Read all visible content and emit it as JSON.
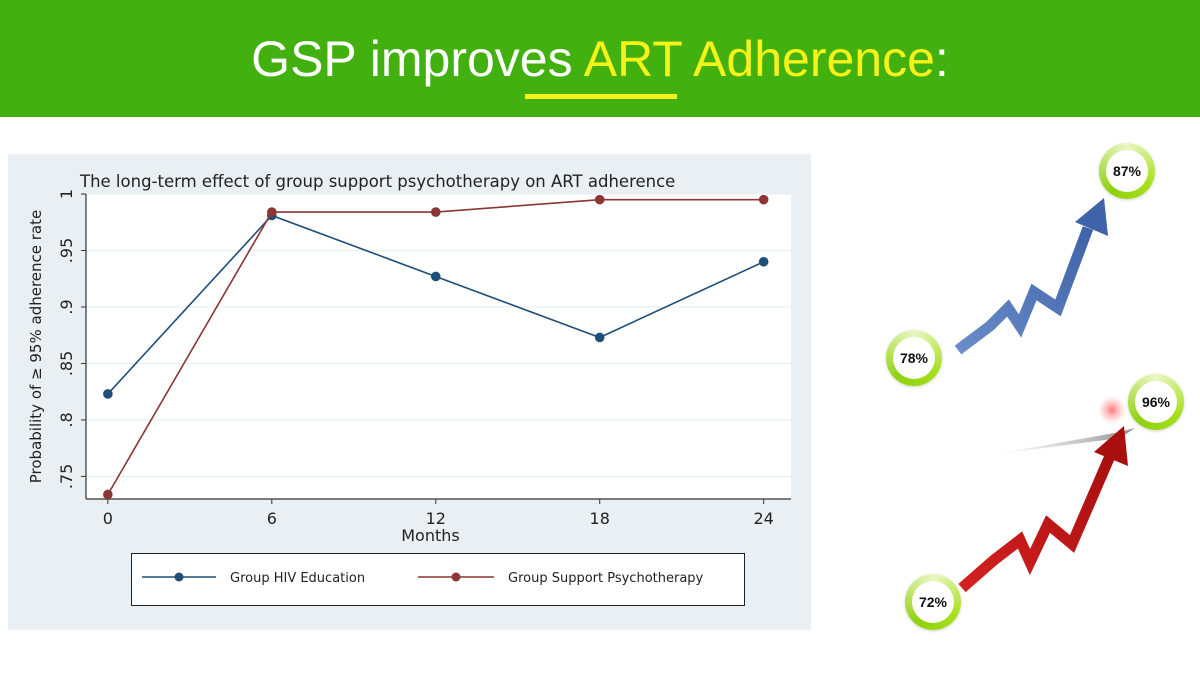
{
  "slide": {
    "title_parts": [
      "GSP improves ",
      "ART",
      " Adherence",
      ":"
    ],
    "colors": {
      "header_bg": "#42b00e",
      "title": "#ffffff",
      "highlight": "#f7f21a"
    }
  },
  "chart_data": {
    "type": "line",
    "title": "The long-term effect of group support psychotherapy on ART adherence",
    "xlabel": "Months",
    "ylabel": "Probability of ≥ 95% adherence rate",
    "x": [
      0,
      6,
      12,
      18,
      24
    ],
    "xticks": [
      "0",
      "6",
      "12",
      "18",
      "24"
    ],
    "yticks": [
      ".75",
      ".8",
      ".85",
      ".9",
      ".95",
      "1"
    ],
    "ylim": [
      0.73,
      1.0
    ],
    "xlim": [
      -0.8,
      25
    ],
    "grid": true,
    "legend_position": "bottom",
    "series": [
      {
        "name": "Group HIV Education",
        "color": "#1f4e79",
        "values": [
          0.823,
          0.981,
          0.927,
          0.873,
          0.94
        ]
      },
      {
        "name": "Group Support Psychotherapy",
        "color": "#8b3535",
        "values": [
          0.734,
          0.984,
          0.984,
          0.995,
          0.995
        ]
      }
    ]
  },
  "infographic": {
    "badges": [
      {
        "label": "78%",
        "color": "#4a6fb5"
      },
      {
        "label": "87%",
        "color": "#4a6fb5"
      },
      {
        "label": "72%",
        "color": "#c81a1a"
      },
      {
        "label": "96%",
        "color": "#c81a1a"
      }
    ]
  }
}
